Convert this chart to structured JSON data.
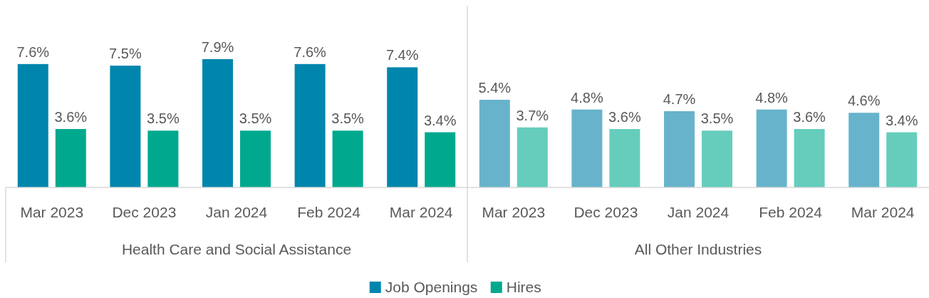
{
  "chart_data": {
    "type": "bar",
    "categories": [
      "Mar 2023",
      "Dec 2023",
      "Jan 2024",
      "Feb 2024",
      "Mar 2024",
      "Mar 2023",
      "Dec 2023",
      "Jan 2024",
      "Feb 2024",
      "Mar 2024"
    ],
    "series": [
      {
        "name": "Job Openings",
        "color": "#0086ad",
        "colors": [
          "#0086ad",
          "#0086ad",
          "#0086ad",
          "#0086ad",
          "#0086ad",
          "#67b3cc",
          "#67b3cc",
          "#67b3cc",
          "#67b3cc",
          "#67b3cc"
        ],
        "values": [
          7.6,
          7.5,
          7.9,
          7.6,
          7.4,
          5.4,
          4.8,
          4.7,
          4.8,
          4.6
        ],
        "value_labels": [
          "7.6%",
          "7.5%",
          "7.9%",
          "7.6%",
          "7.4%",
          "5.4%",
          "4.8%",
          "4.7%",
          "4.8%",
          "4.6%"
        ]
      },
      {
        "name": "Hires",
        "color": "#00a98e",
        "colors": [
          "#00a98e",
          "#00a98e",
          "#00a98e",
          "#00a98e",
          "#00a98e",
          "#66cdbc",
          "#66cdbc",
          "#66cdbc",
          "#66cdbc",
          "#66cdbc"
        ],
        "values": [
          3.6,
          3.5,
          3.5,
          3.5,
          3.4,
          3.7,
          3.6,
          3.5,
          3.6,
          3.4
        ],
        "value_labels": [
          "3.6%",
          "3.5%",
          "3.5%",
          "3.5%",
          "3.4%",
          "3.7%",
          "3.6%",
          "3.5%",
          "3.6%",
          "3.4%"
        ]
      }
    ],
    "annotations": [
      "Health Care and Social Assistance",
      "All Other Industries"
    ],
    "legend": "bottom"
  }
}
